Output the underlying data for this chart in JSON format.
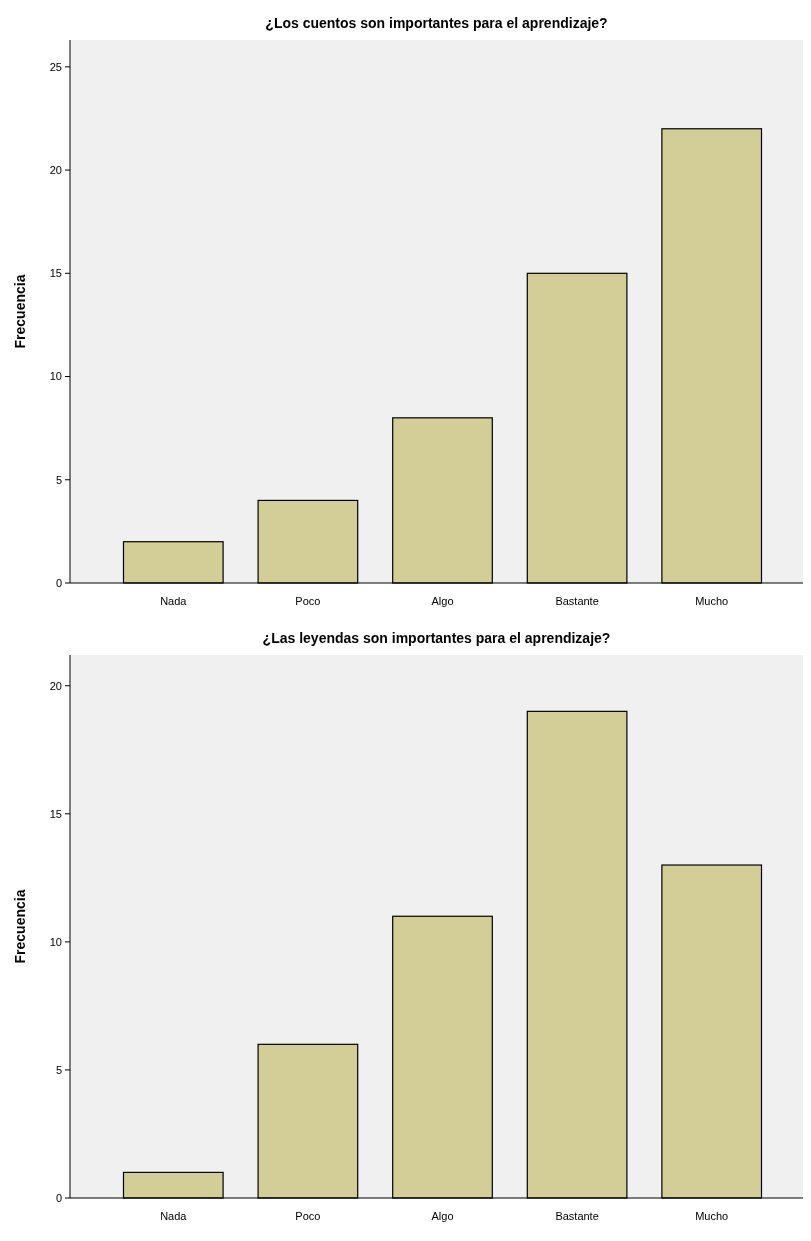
{
  "chart_data": [
    {
      "type": "bar",
      "title": "¿Los cuentos son importantes para el aprendizaje?",
      "ylabel": "Frecuencia",
      "categories": [
        "Nada",
        "Poco",
        "Algo",
        "Bastante",
        "Mucho"
      ],
      "values": [
        2,
        4,
        8,
        15,
        22
      ],
      "color": "#d3ce97",
      "ylim": [
        0,
        26.3
      ],
      "yticks": [
        0,
        5,
        10,
        15,
        20,
        25
      ],
      "grid": false
    },
    {
      "type": "bar",
      "title": "¿Las leyendas son importantes para el aprendizaje?",
      "ylabel": "Frecuencia",
      "categories": [
        "Nada",
        "Poco",
        "Algo",
        "Bastante",
        "Mucho"
      ],
      "values": [
        1,
        6,
        11,
        19,
        13
      ],
      "color": "#d3ce97",
      "ylim": [
        0,
        21.2
      ],
      "yticks": [
        0,
        5,
        10,
        15,
        20
      ],
      "grid": false
    }
  ]
}
